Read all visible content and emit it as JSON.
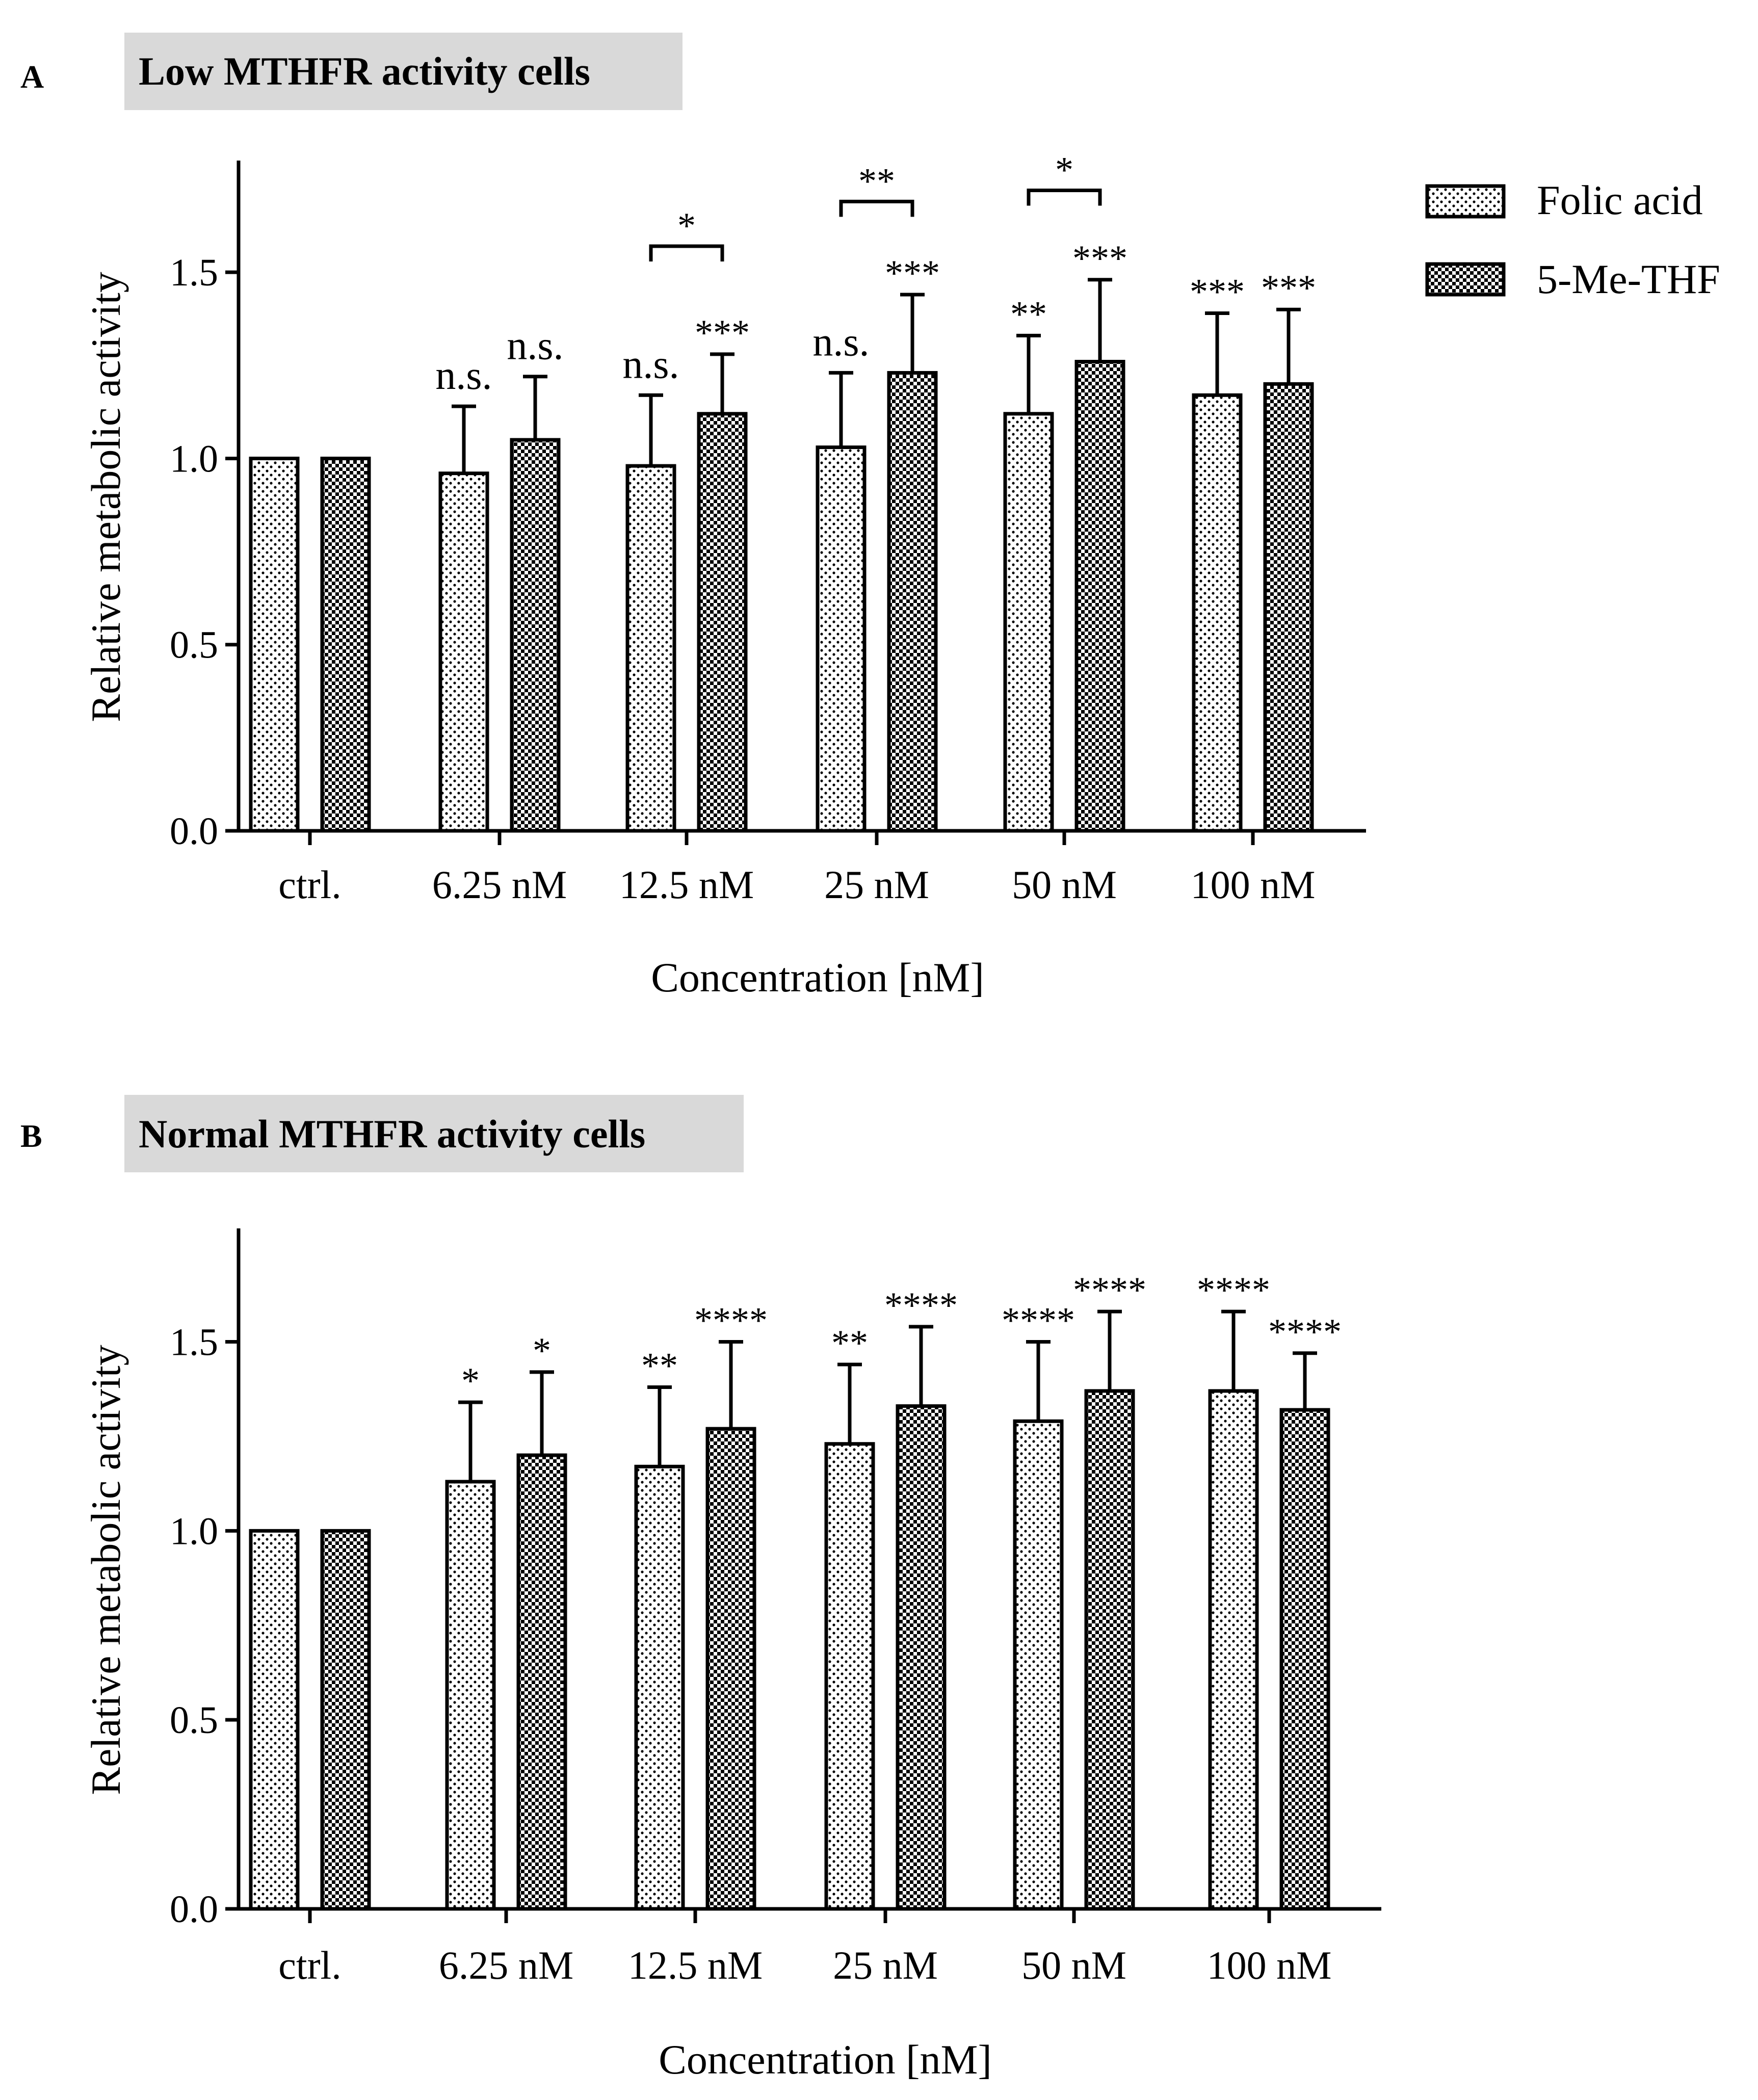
{
  "figure": {
    "legend": {
      "series": [
        "Folic acid",
        "5-Me-THF"
      ]
    }
  },
  "chart_data": [
    {
      "type": "bar",
      "panel_letter": "A",
      "title": "Low MTHFR activity cells",
      "xlabel": "Concentration [nM]",
      "ylabel": "Relative metabolic activity",
      "ylim": [
        0,
        1.8
      ],
      "yticks": [
        "0.0",
        "0.5",
        "1.0",
        "1.5"
      ],
      "ytick_values": [
        0,
        0.5,
        1.0,
        1.5
      ],
      "categories": [
        "ctrl.",
        "6.25 nM",
        "12.5 nM",
        "25 nM",
        "50 nM",
        "100 nM"
      ],
      "series": [
        {
          "name": "Folic acid",
          "pattern": "dots",
          "values": [
            1.0,
            0.96,
            0.98,
            1.03,
            1.12,
            1.17
          ],
          "errors": [
            null,
            0.18,
            0.19,
            0.2,
            0.21,
            0.22
          ],
          "annotations": [
            "",
            "n.s.",
            "n.s.",
            "n.s.",
            "**",
            "***"
          ]
        },
        {
          "name": "5-Me-THF",
          "pattern": "checker",
          "values": [
            1.0,
            1.05,
            1.12,
            1.23,
            1.26,
            1.2
          ],
          "errors": [
            null,
            0.17,
            0.16,
            0.21,
            0.22,
            0.2
          ],
          "annotations": [
            "",
            "n.s.",
            "***",
            "***",
            "***",
            "***"
          ]
        }
      ],
      "comparisons": [
        {
          "category": "12.5 nM",
          "level": 1.57,
          "label": "*"
        },
        {
          "category": "25 nM",
          "level": 1.69,
          "label": "**"
        },
        {
          "category": "50 nM",
          "level": 1.72,
          "label": "*"
        }
      ]
    },
    {
      "type": "bar",
      "panel_letter": "B",
      "title": "Normal MTHFR activity cells",
      "xlabel": "Concentration [nM]",
      "ylabel": "Relative metabolic activity",
      "ylim": [
        0,
        1.8
      ],
      "yticks": [
        "0.0",
        "0.5",
        "1.0",
        "1.5"
      ],
      "ytick_values": [
        0,
        0.5,
        1.0,
        1.5
      ],
      "categories": [
        "ctrl.",
        "6.25 nM",
        "12.5 nM",
        "25 nM",
        "50 nM",
        "100 nM"
      ],
      "series": [
        {
          "name": "Folic acid",
          "pattern": "dots",
          "values": [
            1.0,
            1.13,
            1.17,
            1.23,
            1.29,
            1.37
          ],
          "errors": [
            null,
            0.21,
            0.21,
            0.21,
            0.21,
            0.21
          ],
          "annotations": [
            "",
            "*",
            "**",
            "**",
            "****",
            "****"
          ]
        },
        {
          "name": "5-Me-THF",
          "pattern": "checker",
          "values": [
            1.0,
            1.2,
            1.27,
            1.33,
            1.37,
            1.32
          ],
          "errors": [
            null,
            0.22,
            0.23,
            0.21,
            0.21,
            0.15
          ],
          "annotations": [
            "",
            "*",
            "****",
            "****",
            "****",
            "****"
          ]
        }
      ],
      "comparisons": []
    }
  ]
}
